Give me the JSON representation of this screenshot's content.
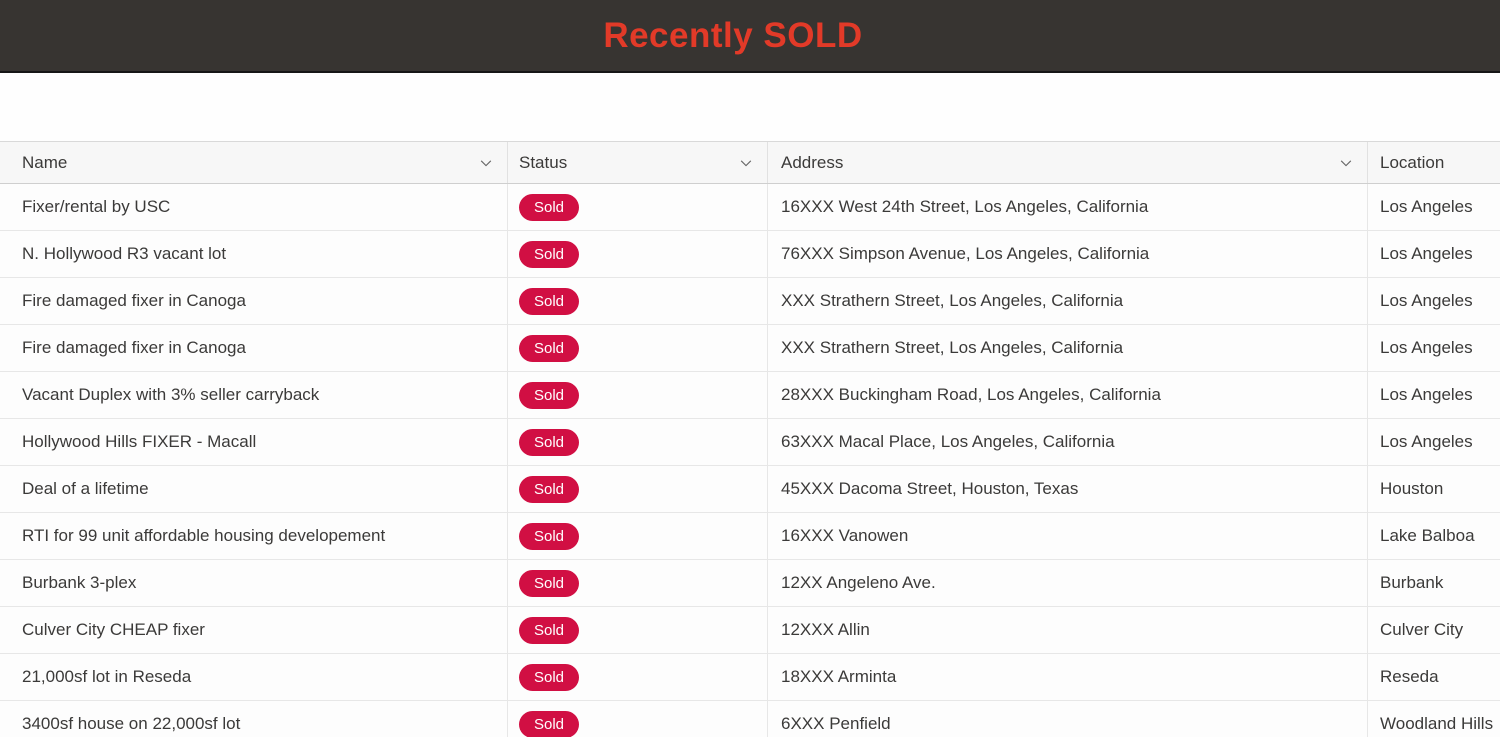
{
  "header": {
    "title": "Recently SOLD",
    "title_color": "#e23a28",
    "bar_bg": "#373431"
  },
  "table": {
    "columns": [
      {
        "key": "name",
        "label": "Name",
        "has_chevron": true
      },
      {
        "key": "status",
        "label": "Status",
        "has_chevron": true
      },
      {
        "key": "address",
        "label": "Address",
        "has_chevron": true
      },
      {
        "key": "location",
        "label": "Location",
        "has_chevron": false
      }
    ],
    "status_badge": {
      "bg": "#d10f43",
      "text_color": "#ffffff"
    },
    "rows": [
      {
        "name": "Fixer/rental by USC",
        "status": "Sold",
        "address": "16XXX West 24th Street, Los Angeles, California",
        "location": "Los Angeles"
      },
      {
        "name": "N. Hollywood R3 vacant lot",
        "status": "Sold",
        "address": "76XXX Simpson Avenue, Los Angeles, California",
        "location": "Los Angeles"
      },
      {
        "name": "Fire damaged fixer in Canoga",
        "status": "Sold",
        "address": "XXX Strathern Street, Los Angeles, California",
        "location": "Los Angeles"
      },
      {
        "name": "Fire damaged fixer in Canoga",
        "status": "Sold",
        "address": "XXX Strathern Street, Los Angeles, California",
        "location": "Los Angeles"
      },
      {
        "name": "Vacant Duplex with 3% seller carryback",
        "status": "Sold",
        "address": "28XXX Buckingham Road, Los Angeles, California",
        "location": "Los Angeles"
      },
      {
        "name": "Hollywood Hills FIXER - Macall",
        "status": "Sold",
        "address": "63XXX Macal Place, Los Angeles, California",
        "location": "Los Angeles"
      },
      {
        "name": "Deal of a lifetime",
        "status": "Sold",
        "address": "45XXX Dacoma Street, Houston, Texas",
        "location": "Houston"
      },
      {
        "name": "RTI for 99 unit affordable housing developement",
        "status": "Sold",
        "address": "16XXX Vanowen",
        "location": "Lake Balboa"
      },
      {
        "name": "Burbank 3-plex",
        "status": "Sold",
        "address": "12XX Angeleno Ave.",
        "location": "Burbank"
      },
      {
        "name": "Culver City CHEAP fixer",
        "status": "Sold",
        "address": "12XXX Allin",
        "location": "Culver City"
      },
      {
        "name": "21,000sf lot in Reseda",
        "status": "Sold",
        "address": "18XXX Arminta",
        "location": "Reseda"
      },
      {
        "name": "3400sf house on 22,000sf lot",
        "status": "Sold",
        "address": "6XXX Penfield",
        "location": "Woodland Hills"
      }
    ]
  }
}
